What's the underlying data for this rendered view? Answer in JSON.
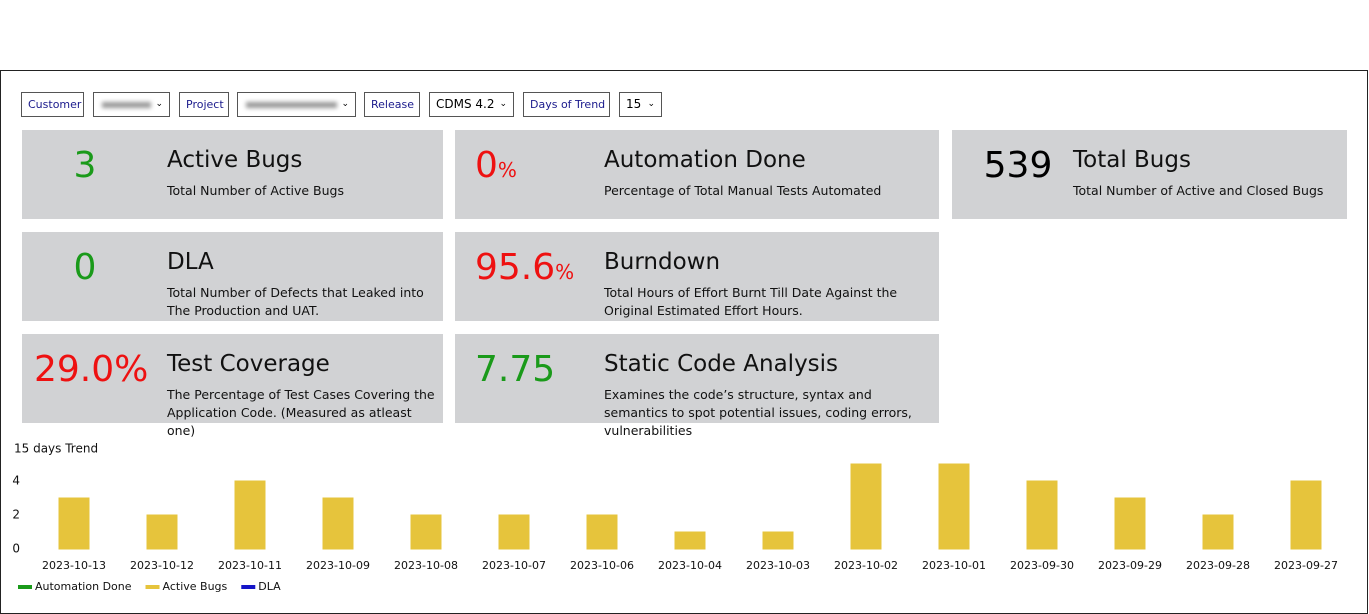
{
  "filters": [
    {
      "label": "Customer"
    },
    {
      "label": "Project"
    },
    {
      "label": "Release",
      "selected": "CDMS 4.2"
    },
    {
      "label": "Days of Trend",
      "selected": "15"
    }
  ],
  "cards": [
    {
      "value": "3",
      "title": "Active Bugs",
      "description": "Total Number of Active Bugs",
      "color": "#1a9a1a"
    },
    {
      "value": "0",
      "unit": "%",
      "title": "Automation Done",
      "description": "Percentage of Total Manual Tests Automated",
      "color": "#ee1111"
    },
    {
      "value": "539",
      "title": "Total Bugs",
      "description": "Total Number of Active and Closed Bugs",
      "color": "#000000"
    },
    {
      "value": "0",
      "title": "DLA",
      "description": "Total Number of Defects that Leaked into The Production and UAT.",
      "color": "#1a9a1a"
    },
    {
      "value": "95.6",
      "unit": "%",
      "title": "Burndown",
      "description": "Total Hours of Effort Burnt Till Date Against the Original Estimated Effort Hours.",
      "color": "#ee1111"
    },
    {
      "value": "29.0%",
      "title": "Test Coverage",
      "description": "The Percentage of Test Cases Covering the Application Code. (Measured as atleast one)",
      "color": "#ee1111"
    },
    {
      "value": "7.75",
      "title": "Static Code Analysis",
      "description": "Examines the code’s structure, syntax and semantics to spot potential issues, coding errors, vulnerabilities",
      "color": "#1a9a1a"
    }
  ],
  "chart_data": {
    "type": "bar",
    "title": "15 days Trend",
    "categories": [
      "2023-10-13",
      "2023-10-12",
      "2023-10-11",
      "2023-10-09",
      "2023-10-08",
      "2023-10-07",
      "2023-10-06",
      "2023-10-04",
      "2023-10-03",
      "2023-10-02",
      "2023-10-01",
      "2023-09-30",
      "2023-09-29",
      "2023-09-28",
      "2023-09-27"
    ],
    "series": [
      {
        "name": "Automation Done",
        "color": "#1a9a1a",
        "values": [
          0,
          0,
          0,
          0,
          0,
          0,
          0,
          0,
          0,
          0,
          0,
          0,
          0,
          0,
          0
        ]
      },
      {
        "name": "Active Bugs",
        "color": "#e6c43c",
        "values": [
          3,
          2,
          4,
          3,
          2,
          2,
          2,
          1,
          1,
          5,
          5,
          4,
          3,
          2,
          4
        ]
      },
      {
        "name": "DLA",
        "color": "#1515c8",
        "values": [
          0,
          0,
          0,
          0,
          0,
          0,
          0,
          0,
          0,
          0,
          0,
          0,
          0,
          0,
          0
        ]
      }
    ],
    "ylim": [
      0,
      5
    ],
    "yticks": [
      0,
      2,
      4
    ],
    "grid": false
  }
}
